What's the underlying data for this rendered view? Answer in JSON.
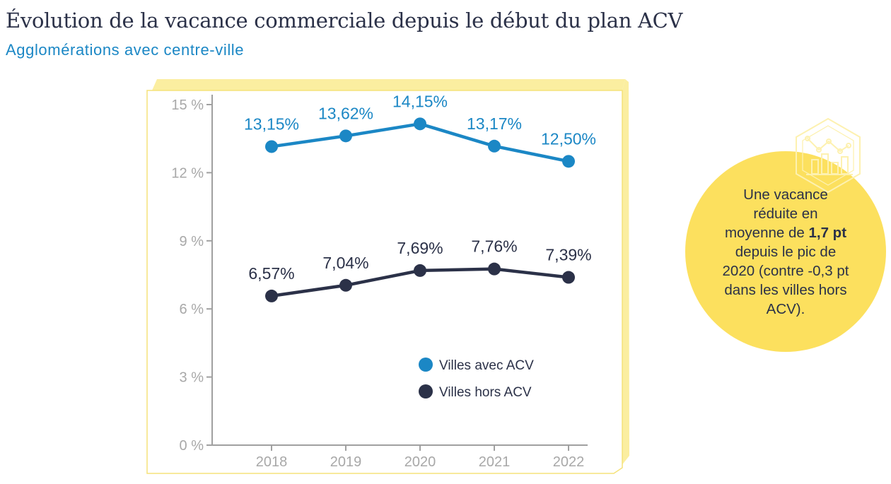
{
  "header": {
    "title": "Évolution de la vacance commerciale depuis le début du plan ACV",
    "subtitle": "Agglomérations avec centre-ville"
  },
  "chart_data": {
    "type": "line",
    "title": "Évolution de la vacance commerciale depuis le début du plan ACV",
    "subtitle": "Agglomérations avec centre-ville",
    "x": [
      "2018",
      "2019",
      "2020",
      "2021",
      "2022"
    ],
    "ylim": [
      0,
      15
    ],
    "yticks": [
      0,
      3,
      6,
      9,
      12,
      15
    ],
    "ytick_labels": [
      "0 %",
      "3 %",
      "6 %",
      "9 %",
      "12 %",
      "15 %"
    ],
    "grid": false,
    "legend_position": "bottom-right",
    "series": [
      {
        "name": "Villes avec ACV",
        "color": "#1b87c5",
        "values": [
          13.15,
          13.62,
          14.15,
          13.17,
          12.5
        ],
        "labels": [
          "13,15%",
          "13,62%",
          "14,15%",
          "13,17%",
          "12,50%"
        ]
      },
      {
        "name": "Villes hors ACV",
        "color": "#2b3148",
        "values": [
          6.57,
          7.04,
          7.69,
          7.76,
          7.39
        ],
        "labels": [
          "6,57%",
          "7,04%",
          "7,69%",
          "7,76%",
          "7,39%"
        ]
      }
    ]
  },
  "callout": {
    "line1": "Une vacance",
    "line2": "réduite en",
    "line3_prefix": "moyenne de ",
    "line3_bold": "1,7 pt",
    "line4": "depuis le pic de",
    "line5": "2020 (contre -0,3 pt",
    "line6": "dans les villes hors",
    "line7": "ACV).",
    "icon": "bar-line-chart-hexagon-icon",
    "color": "#fce05e"
  }
}
